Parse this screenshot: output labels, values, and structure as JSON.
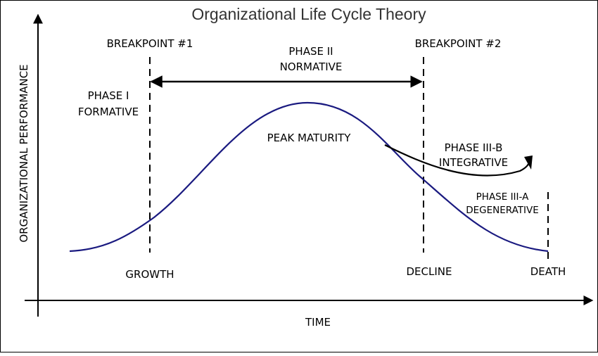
{
  "title": "Organizational Life Cycle Theory",
  "axes": {
    "y_label": "ORGANIZATIONAL PERFORMANCE",
    "x_label": "TIME"
  },
  "breakpoints": {
    "first": "BREAKPOINT #1",
    "second": "BREAKPOINT #2"
  },
  "phases": {
    "formative_line1": "PHASE I",
    "formative_line2": "FORMATIVE",
    "normative_line1": "PHASE II",
    "normative_line2": "NORMATIVE",
    "integrative_line1": "PHASE III-B",
    "integrative_line2": "INTEGRATIVE",
    "degenerative_line1": "PHASE III-A",
    "degenerative_line2": "DEGENERATIVE"
  },
  "stages": {
    "growth": "GROWTH",
    "peak": "PEAK MATURITY",
    "decline": "DECLINE",
    "death": "DEATH"
  },
  "colors": {
    "curve": "#1a1a80",
    "axes": "#000000",
    "title": "#333333"
  }
}
